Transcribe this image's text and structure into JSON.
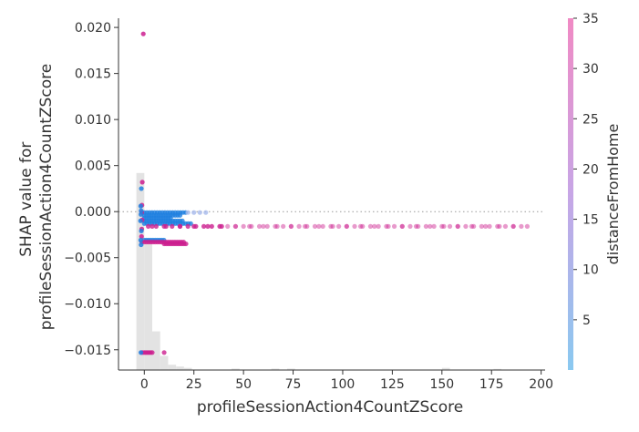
{
  "chart_data": {
    "type": "scatter",
    "title": "",
    "xlabel": "profileSessionAction4CountZScore",
    "ylabel_lines": [
      "SHAP value for",
      "profileSessionAction4CountZScore"
    ],
    "xlim": [
      -13,
      202
    ],
    "ylim": [
      -0.0172,
      0.021
    ],
    "xticks": [
      0,
      25,
      50,
      75,
      100,
      125,
      150,
      175,
      200
    ],
    "yticks": [
      -0.015,
      -0.01,
      -0.005,
      0.0,
      0.005,
      0.01,
      0.015,
      0.02
    ],
    "ytick_labels": [
      "−0.015",
      "−0.010",
      "−0.005",
      "0.000",
      "0.005",
      "0.010",
      "0.015",
      "0.020"
    ],
    "reference_line_y": 0,
    "colorbar": {
      "label": "distanceFromHome",
      "range": [
        0,
        35
      ],
      "ticks": [
        5,
        10,
        15,
        20,
        25,
        30,
        35
      ],
      "colors": [
        "#8ac9f0",
        "#c7a6e6",
        "#f08ac4"
      ]
    },
    "histogram": {
      "bins": [
        {
          "x0": -4,
          "x1": 0,
          "value": 0.56
        },
        {
          "x0": 0,
          "x1": 4,
          "value": 0.36
        },
        {
          "x0": 4,
          "x1": 8,
          "value": 0.11
        },
        {
          "x0": 8,
          "x1": 12,
          "value": 0.04
        },
        {
          "x0": 12,
          "x1": 16,
          "value": 0.015
        },
        {
          "x0": 16,
          "x1": 20,
          "value": 0.01
        },
        {
          "x0": 20,
          "x1": 24,
          "value": 0.006
        },
        {
          "x0": 44,
          "x1": 48,
          "value": 0.004
        },
        {
          "x0": 64,
          "x1": 68,
          "value": 0.004
        },
        {
          "x0": 72,
          "x1": 76,
          "value": 0.004
        },
        {
          "x0": 150,
          "x1": 154,
          "value": 0.006
        },
        {
          "x0": 176,
          "x1": 180,
          "value": 0.003
        }
      ]
    },
    "series": [
      {
        "points": [
          {
            "x": -0.5,
            "y": 0.0193,
            "c": 33
          },
          {
            "x": -1.0,
            "y": 0.0032,
            "c": 33
          },
          {
            "x": -1.2,
            "y": 0.0007,
            "c": 33
          },
          {
            "x": -1.3,
            "y": -0.0001,
            "c": 33
          },
          {
            "x": -1.1,
            "y": -0.0009,
            "c": 33
          },
          {
            "x": -1.3,
            "y": -0.0019,
            "c": 33
          },
          {
            "x": -1.4,
            "y": -0.0027,
            "c": 33
          },
          {
            "x": -1.2,
            "y": -0.0033,
            "c": 33
          },
          {
            "x": -1.0,
            "y": -0.0153,
            "c": 33
          },
          {
            "x": -1.5,
            "y": 0.0025,
            "c": 3
          },
          {
            "x": -1.8,
            "y": 0.0006,
            "c": 3
          },
          {
            "x": -1.6,
            "y": 0.0001,
            "c": 3
          },
          {
            "x": -1.7,
            "y": -0.0003,
            "c": 3
          },
          {
            "x": -1.9,
            "y": -0.001,
            "c": 3
          },
          {
            "x": -1.5,
            "y": -0.0021,
            "c": 3
          },
          {
            "x": -1.8,
            "y": -0.0031,
            "c": 3
          },
          {
            "x": -1.6,
            "y": -0.0036,
            "c": 3
          },
          {
            "x": -1.7,
            "y": -0.0153,
            "c": 3
          }
        ],
        "clusters": [
          {
            "y": -0.0001,
            "x_from": 0,
            "x_to": 22,
            "step": 1.3,
            "c": 3
          },
          {
            "y": -0.0001,
            "x_from": 22,
            "x_to": 31,
            "step": 3,
            "c": 8
          },
          {
            "y": -0.0004,
            "x_from": 0,
            "x_to": 18,
            "step": 1.2,
            "c": 3
          },
          {
            "y": -0.0007,
            "x_from": 0,
            "x_to": 14,
            "step": 1.2,
            "c": 3
          },
          {
            "y": -0.001,
            "x_from": 0,
            "x_to": 20,
            "step": 1.2,
            "c": 3
          },
          {
            "y": -0.0013,
            "x_from": 0,
            "x_to": 24,
            "step": 1.3,
            "c": 3
          },
          {
            "y": -0.0016,
            "x_from": 2,
            "x_to": 190,
            "step": 4,
            "c": 33
          },
          {
            "y": -0.0016,
            "x_from": 4,
            "x_to": 193,
            "step": 7,
            "c": 26
          },
          {
            "y": -0.0031,
            "x_from": 0,
            "x_to": 10,
            "step": 1.1,
            "c": 3
          },
          {
            "y": -0.0033,
            "x_from": 0,
            "x_to": 20,
            "step": 1.1,
            "c": 33
          },
          {
            "y": -0.0035,
            "x_from": 10,
            "x_to": 21,
            "step": 1.0,
            "c": 33
          },
          {
            "y": -0.0153,
            "x_from": 0,
            "x_to": 4,
            "step": 0.8,
            "c": 33
          },
          {
            "y": -0.0153,
            "x_from": 10,
            "x_to": 11,
            "step": 5,
            "c": 28
          }
        ]
      }
    ]
  }
}
